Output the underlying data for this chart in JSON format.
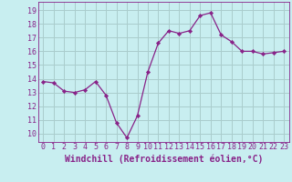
{
  "x": [
    0,
    1,
    2,
    3,
    4,
    5,
    6,
    7,
    8,
    9,
    10,
    11,
    12,
    13,
    14,
    15,
    16,
    17,
    18,
    19,
    20,
    21,
    22,
    23
  ],
  "y": [
    13.8,
    13.7,
    13.1,
    13.0,
    13.2,
    13.8,
    12.8,
    10.8,
    9.7,
    11.3,
    14.5,
    16.6,
    17.5,
    17.3,
    17.5,
    18.6,
    18.8,
    17.2,
    16.7,
    16.0,
    16.0,
    15.8,
    15.9,
    16.0
  ],
  "line_color": "#882288",
  "marker_color": "#882288",
  "bg_color": "#c8eef0",
  "grid_color": "#aacccc",
  "xlabel": "Windchill (Refroidissement éolien,°C)",
  "xlim": [
    -0.5,
    23.5
  ],
  "ylim": [
    9.4,
    19.6
  ],
  "yticks": [
    10,
    11,
    12,
    13,
    14,
    15,
    16,
    17,
    18,
    19
  ],
  "xticks": [
    0,
    1,
    2,
    3,
    4,
    5,
    6,
    7,
    8,
    9,
    10,
    11,
    12,
    13,
    14,
    15,
    16,
    17,
    18,
    19,
    20,
    21,
    22,
    23
  ],
  "xtick_labels": [
    "0",
    "1",
    "2",
    "3",
    "4",
    "5",
    "6",
    "7",
    "8",
    "9",
    "10",
    "11",
    "12",
    "13",
    "14",
    "15",
    "16",
    "17",
    "18",
    "19",
    "20",
    "21",
    "22",
    "23"
  ],
  "xlabel_color": "#882288",
  "tick_color": "#882288",
  "tick_fontsize": 6.0,
  "xlabel_fontsize": 7.0
}
